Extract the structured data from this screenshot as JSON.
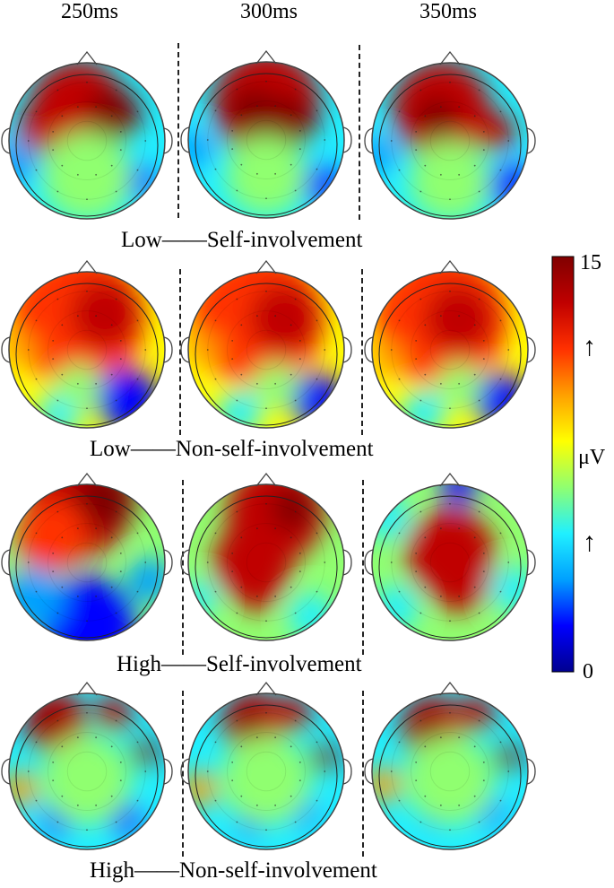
{
  "columns": [
    "250ms",
    "300ms",
    "350ms"
  ],
  "rows": [
    {
      "caption": "Low——Self-involvement"
    },
    {
      "caption": "Low——Non-self-involvement"
    },
    {
      "caption": "High——Self-involvement"
    },
    {
      "caption": "High——Non-self-involvement"
    }
  ],
  "colorbar": {
    "max_label": "15",
    "min_label": "0",
    "unit_label": "μV",
    "arrow_upper": "↑",
    "arrow_lower": "↑",
    "colormap": [
      "#00008f",
      "#0000ff",
      "#00a0ff",
      "#20f0ff",
      "#90ff70",
      "#ffff00",
      "#ffa000",
      "#ff3000",
      "#c00000",
      "#800000"
    ]
  }
}
